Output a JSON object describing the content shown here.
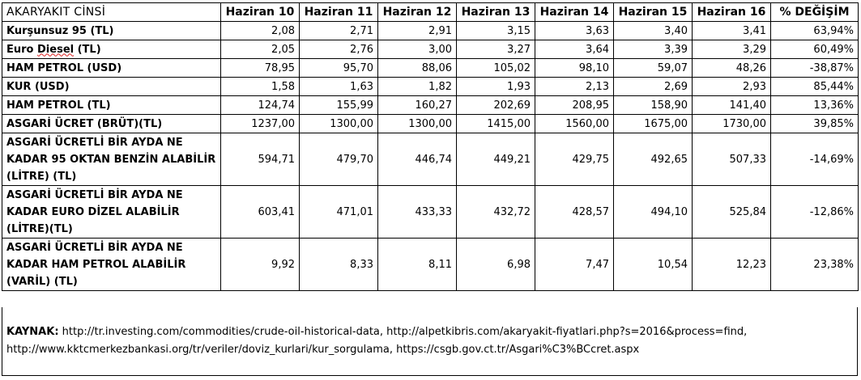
{
  "header": {
    "label_col": "AKARYAKIT CİNSİ",
    "columns": [
      "Haziran 10",
      "Haziran 11",
      "Haziran 12",
      "Haziran 13",
      "Haziran 14",
      "Haziran 15",
      "Haziran 16",
      "% DEĞİŞİM"
    ]
  },
  "rows": [
    {
      "label": "Kurşunsuz 95 (TL)",
      "values": [
        "2,08",
        "2,71",
        "2,91",
        "3,15",
        "3,63",
        "3,40",
        "3,41",
        "63,94%"
      ]
    },
    {
      "label": "Euro Diesel (TL)",
      "values": [
        "2,05",
        "2,76",
        "3,00",
        "3,27",
        "3,64",
        "3,39",
        "3,29",
        "60,49%"
      ]
    },
    {
      "label": "HAM PETROL (USD)",
      "values": [
        "78,95",
        "95,70",
        "88,06",
        "105,02",
        "98,10",
        "59,07",
        "48,26",
        "-38,87%"
      ]
    },
    {
      "label": "KUR (USD)",
      "values": [
        "1,58",
        "1,63",
        "1,82",
        "1,93",
        "2,13",
        "2,69",
        "2,93",
        "85,44%"
      ]
    },
    {
      "label": "HAM PETROL (TL)",
      "values": [
        "124,74",
        "155,99",
        "160,27",
        "202,69",
        "208,95",
        "158,90",
        "141,40",
        "13,36%"
      ]
    },
    {
      "label": "ASGARİ ÜCRET (BRÜT)(TL)",
      "values": [
        "1237,00",
        "1300,00",
        "1300,00",
        "1415,00",
        "1560,00",
        "1675,00",
        "1730,00",
        "39,85%"
      ]
    },
    {
      "label": "ASGARİ ÜCRETLİ BİR AYDA NE KADAR 95 OKTAN BENZİN ALABİLİR (LİTRE) (TL)",
      "values": [
        "594,71",
        "479,70",
        "446,74",
        "449,21",
        "429,75",
        "492,65",
        "507,33",
        "-14,69%"
      ]
    },
    {
      "label": "ASGARİ ÜCRETLİ BİR AYDA NE KADAR EURO DİZEL ALABİLİR (LİTRE)(TL)",
      "values": [
        "603,41",
        "471,01",
        "433,33",
        "432,72",
        "428,57",
        "494,10",
        "525,84",
        "-12,86%"
      ]
    },
    {
      "label": "ASGARİ ÜCRETLİ BİR AYDA NE KADAR HAM PETROL ALABİLİR (VARİL) (TL)",
      "values": [
        "9,92",
        "8,33",
        "8,11",
        "6,98",
        "7,47",
        "10,54",
        "12,23",
        "23,38%"
      ]
    }
  ],
  "source": {
    "label": "KAYNAK:",
    "text": " http://tr.investing.com/commodities/crude-oil-historical-data, http://alpetkibris.com/akaryakit-fiyatlari.php?s=2016&process=find, http://www.kktcmerkezbankasi.org/tr/veriler/doviz_kurlari/kur_sorgulama, https://csgb.gov.ct.tr/Asgari%C3%BCcret.aspx"
  }
}
